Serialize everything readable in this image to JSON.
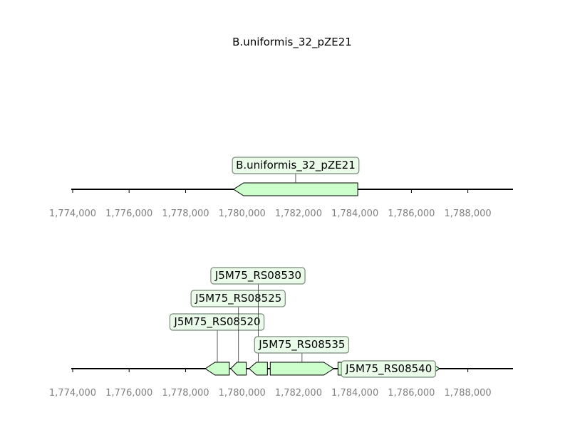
{
  "title": "B.uniformis_32_pZE21",
  "colors": {
    "feature_fill": "#ccffcc",
    "label_box_fill": "#eafbea",
    "tick_text": "#808080"
  },
  "axis_ticks": [
    "1,774,000",
    "1,776,000",
    "1,778,000",
    "1,780,000",
    "1,782,000",
    "1,784,000",
    "1,786,000",
    "1,788,000"
  ],
  "axis_range": [
    1773950,
    1789600
  ],
  "tracks": [
    {
      "features": [
        {
          "start": 1779700,
          "end": 1784100,
          "strand": -1,
          "label": "B.uniformis_32_pZE21",
          "label_inside": false
        }
      ]
    },
    {
      "features": [
        {
          "start": 1778700,
          "end": 1779550,
          "strand": -1,
          "label": "J5M75_RS08520",
          "label_inside": false
        },
        {
          "start": 1779600,
          "end": 1780150,
          "strand": -1,
          "label": "J5M75_RS08525",
          "label_inside": false
        },
        {
          "start": 1780250,
          "end": 1780900,
          "strand": -1,
          "label": "J5M75_RS08530",
          "label_inside": false
        },
        {
          "start": 1781000,
          "end": 1783250,
          "strand": 1,
          "label": "J5M75_RS08535",
          "label_inside": false
        },
        {
          "start": 1783400,
          "end": 1787000,
          "strand": 1,
          "label": "J5M75_RS08540",
          "label_inside": true
        }
      ]
    }
  ]
}
